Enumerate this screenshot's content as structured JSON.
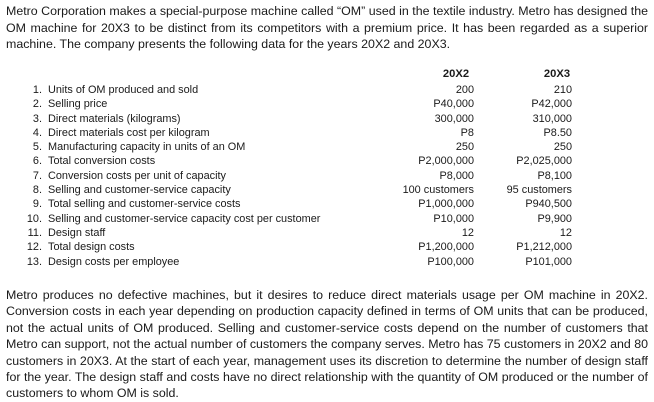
{
  "intro": "Metro Corporation makes a special-purpose machine called “OM” used in the textile industry. Metro has designed the OM machine for 20X3 to be distinct from its competitors with a premium price. It has been regarded as a superior machine. The company presents the following data for the years 20X2 and 20X3.",
  "headers": {
    "year1": "20X2",
    "year2": "20X3"
  },
  "rows": [
    {
      "num": "1.",
      "label": "Units of OM produced and sold",
      "v1": "200",
      "v2": "210"
    },
    {
      "num": "2.",
      "label": "Selling price",
      "v1": "P40,000",
      "v2": "P42,000"
    },
    {
      "num": "3.",
      "label": "Direct materials (kilograms)",
      "v1": "300,000",
      "v2": "310,000"
    },
    {
      "num": "4.",
      "label": "Direct materials cost per kilogram",
      "v1": "P8",
      "v2": "P8.50"
    },
    {
      "num": "5.",
      "label": "Manufacturing capacity in units of an OM",
      "v1": "250",
      "v2": "250"
    },
    {
      "num": "6.",
      "label": "Total conversion costs",
      "v1": "P2,000,000",
      "v2": "P2,025,000"
    },
    {
      "num": "7.",
      "label": "Conversion costs per unit of capacity",
      "v1": "P8,000",
      "v2": "P8,100"
    },
    {
      "num": "8.",
      "label": "Selling and customer-service capacity",
      "v1": "100 customers",
      "v2": "95 customers"
    },
    {
      "num": "9.",
      "label": "Total selling and customer-service costs",
      "v1": "P1,000,000",
      "v2": "P940,500"
    },
    {
      "num": "10.",
      "label": "Selling and customer-service capacity cost per customer",
      "v1": "P10,000",
      "v2": "P9,900"
    },
    {
      "num": "11.",
      "label": "Design staff",
      "v1": "12",
      "v2": "12"
    },
    {
      "num": "12.",
      "label": "Total design costs",
      "v1": "P1,200,000",
      "v2": "P1,212,000"
    },
    {
      "num": "13.",
      "label": "Design costs per employee",
      "v1": "P100,000",
      "v2": "P101,000"
    }
  ],
  "outro": "Metro produces no defective machines, but it desires to reduce direct materials usage per OM machine in 20X2. Conversion costs in each year depending on production capacity defined in terms of OM units that can be produced, not the actual units of OM produced. Selling and customer-service costs depend on the number of customers that Metro can support, not the actual number of customers the company serves. Metro has 75 customers in 20X2 and 80 customers in 20X3. At the start of each year, management uses its discretion to determine the number of design staff for the year. The design staff and costs have no direct relationship with the quantity of OM produced or the number of customers to whom OM is sold."
}
